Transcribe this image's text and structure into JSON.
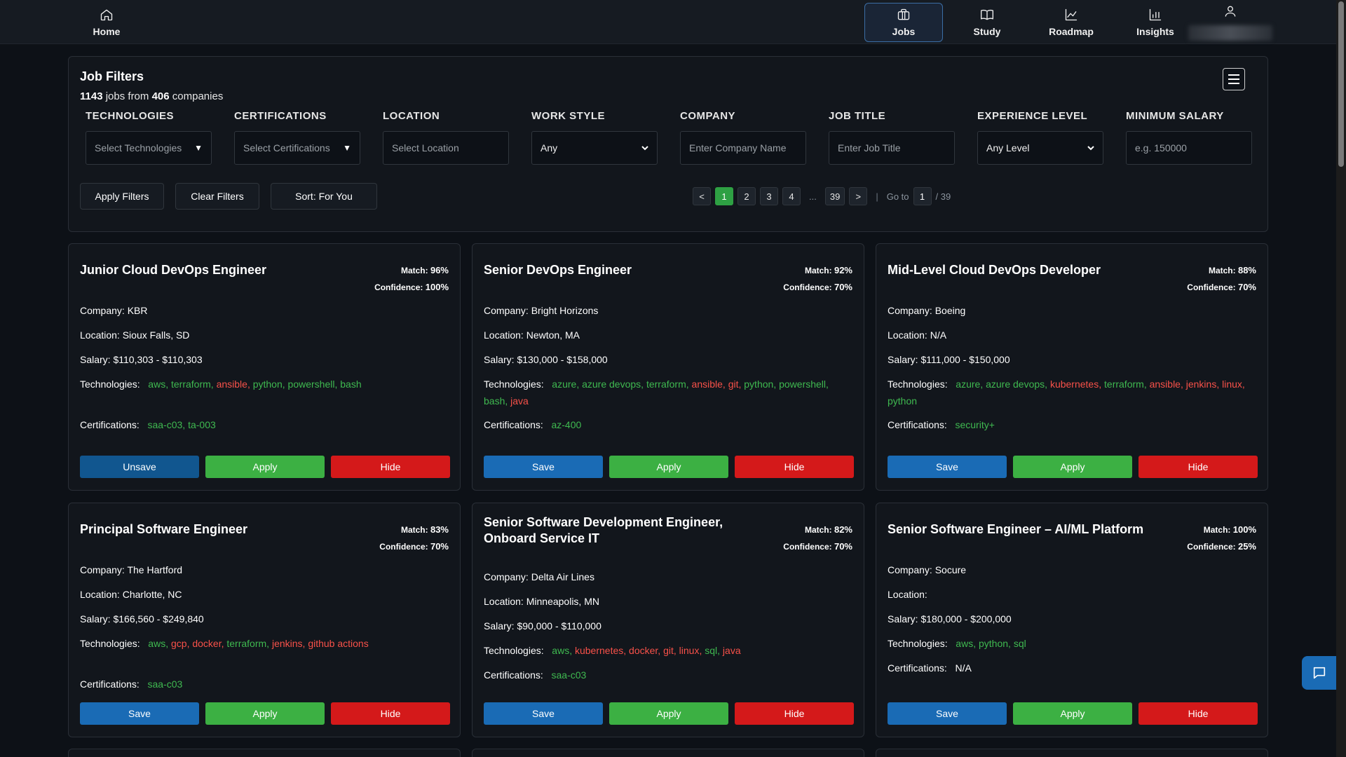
{
  "nav": {
    "home": {
      "label": "Home",
      "icon": "home-icon"
    },
    "jobs": {
      "label": "Jobs",
      "icon": "briefcase-icon"
    },
    "study": {
      "label": "Study",
      "icon": "book-icon"
    },
    "roadmap": {
      "label": "Roadmap",
      "icon": "line-chart-icon"
    },
    "insights": {
      "label": "Insights",
      "icon": "bar-chart-icon"
    },
    "profile": {
      "icon": "user-icon"
    }
  },
  "filters": {
    "title": "Job Filters",
    "jobs_count": "1143",
    "jobs_text": " jobs from ",
    "companies_count": "406",
    "companies_text": " companies",
    "technologies": {
      "label": "TECHNOLOGIES",
      "value": "Select Technologies"
    },
    "certifications": {
      "label": "CERTIFICATIONS",
      "value": "Select Certifications"
    },
    "location": {
      "label": "LOCATION",
      "placeholder": "Select Location"
    },
    "work_style": {
      "label": "WORK STYLE",
      "value": "Any"
    },
    "company": {
      "label": "COMPANY",
      "placeholder": "Enter Company Name"
    },
    "job_title": {
      "label": "JOB TITLE",
      "placeholder": "Enter Job Title"
    },
    "experience": {
      "label": "EXPERIENCE LEVEL",
      "value": "Any Level"
    },
    "min_salary": {
      "label": "MINIMUM SALARY",
      "placeholder": "e.g. 150000"
    },
    "apply_label": "Apply Filters",
    "clear_label": "Clear Filters",
    "sort_label": "Sort: For You"
  },
  "pagination": {
    "prev": "<",
    "pages": [
      "1",
      "2",
      "3",
      "4"
    ],
    "dots": "...",
    "last": "39",
    "next": ">",
    "separator": "|",
    "goto_label": "Go to",
    "goto_value": "1",
    "total": "/ 39"
  },
  "labels": {
    "match": "Match:",
    "confidence": "Confidence:",
    "company": "Company:",
    "location": "Location:",
    "salary": "Salary:",
    "technologies": "Technologies:",
    "certifications": "Certifications:",
    "save": "Save",
    "unsave": "Unsave",
    "apply": "Apply",
    "hide": "Hide"
  },
  "jobs": [
    {
      "title": "Junior Cloud DevOps Engineer",
      "match": "96%",
      "confidence": "100%",
      "company": "KBR",
      "location": "Sioux Falls, SD",
      "salary": "$110,303 - $110,303",
      "technologies": [
        [
          "aws",
          "g"
        ],
        [
          "terraform",
          "g"
        ],
        [
          "ansible",
          "r"
        ],
        [
          "python",
          "g"
        ],
        [
          "powershell",
          "g"
        ],
        [
          "bash",
          "g"
        ]
      ],
      "certifications": [
        [
          "saa-c03",
          "g"
        ],
        [
          "ta-003",
          "g"
        ]
      ],
      "saved": true
    },
    {
      "title": "Senior DevOps Engineer",
      "match": "92%",
      "confidence": "70%",
      "company": "Bright Horizons",
      "location": "Newton, MA",
      "salary": "$130,000 - $158,000",
      "technologies": [
        [
          "azure",
          "g"
        ],
        [
          "azure devops",
          "g"
        ],
        [
          "terraform",
          "g"
        ],
        [
          "ansible",
          "r"
        ],
        [
          "git",
          "r"
        ],
        [
          "python",
          "g"
        ],
        [
          "powershell",
          "g"
        ],
        [
          "bash",
          "g"
        ],
        [
          "java",
          "r"
        ]
      ],
      "certifications": [
        [
          "az-400",
          "g"
        ]
      ],
      "saved": false
    },
    {
      "title": "Mid-Level Cloud DevOps Developer",
      "match": "88%",
      "confidence": "70%",
      "company": "Boeing",
      "location": "N/A",
      "salary": "$111,000 - $150,000",
      "technologies": [
        [
          "azure",
          "g"
        ],
        [
          "azure devops",
          "g"
        ],
        [
          "kubernetes",
          "r"
        ],
        [
          "terraform",
          "g"
        ],
        [
          "ansible",
          "r"
        ],
        [
          "jenkins",
          "r"
        ],
        [
          "linux",
          "r"
        ],
        [
          "python",
          "g"
        ]
      ],
      "certifications": [
        [
          "security+",
          "g"
        ]
      ],
      "saved": false
    },
    {
      "title": "Principal Software Engineer",
      "match": "83%",
      "confidence": "70%",
      "company": "The Hartford",
      "location": "Charlotte, NC",
      "salary": "$166,560 - $249,840",
      "technologies": [
        [
          "aws",
          "g"
        ],
        [
          "gcp",
          "r"
        ],
        [
          "docker",
          "r"
        ],
        [
          "terraform",
          "g"
        ],
        [
          "jenkins",
          "r"
        ],
        [
          "github actions",
          "r"
        ]
      ],
      "certifications": [
        [
          "saa-c03",
          "g"
        ]
      ],
      "saved": false
    },
    {
      "title": "Senior Software Development Engineer, Onboard Service IT",
      "match": "82%",
      "confidence": "70%",
      "company": "Delta Air Lines",
      "location": "Minneapolis, MN",
      "salary": "$90,000 - $110,000",
      "technologies": [
        [
          "aws",
          "g"
        ],
        [
          "kubernetes",
          "r"
        ],
        [
          "docker",
          "r"
        ],
        [
          "git",
          "r"
        ],
        [
          "linux",
          "r"
        ],
        [
          "sql",
          "g"
        ],
        [
          "java",
          "r"
        ]
      ],
      "certifications": [
        [
          "saa-c03",
          "g"
        ]
      ],
      "saved": false
    },
    {
      "title": "Senior Software Engineer – AI/ML Platform",
      "match": "100%",
      "confidence": "25%",
      "company": "Socure",
      "location": "",
      "salary": "$180,000 - $200,000",
      "technologies": [
        [
          "aws",
          "g"
        ],
        [
          "python",
          "g"
        ],
        [
          "sql",
          "g"
        ]
      ],
      "certifications": [
        [
          "N/A",
          "w"
        ]
      ],
      "saved": false
    }
  ],
  "colors": {
    "match_tag": "#3fb950",
    "missing_tag": "#f85149",
    "save": "#1a6bb5",
    "apply": "#3cb043",
    "hide": "#d4191a",
    "page_active": "#2ea043"
  },
  "chat": {
    "icon": "chat-icon"
  }
}
